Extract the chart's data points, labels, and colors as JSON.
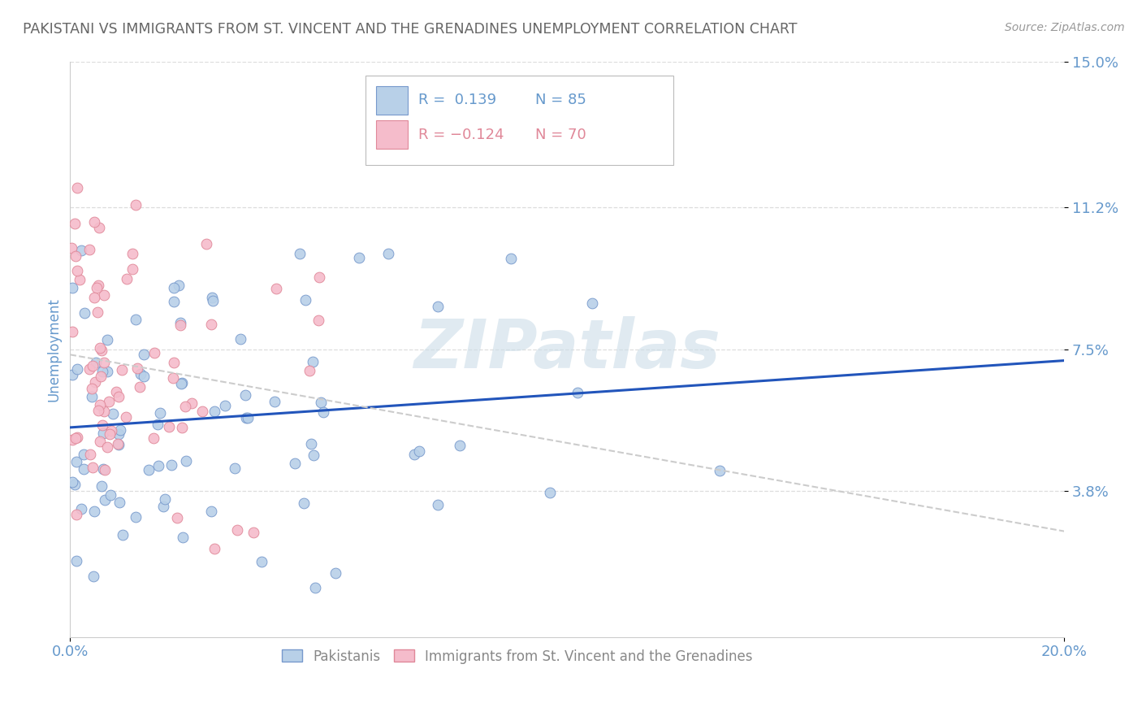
{
  "title": "PAKISTANI VS IMMIGRANTS FROM ST. VINCENT AND THE GRENADINES UNEMPLOYMENT CORRELATION CHART",
  "source": "Source: ZipAtlas.com",
  "ylabel": "Unemployment",
  "xlim": [
    0.0,
    20.0
  ],
  "ylim": [
    0.0,
    15.0
  ],
  "ytick_vals": [
    3.8,
    7.5,
    11.2,
    15.0
  ],
  "xtick_vals": [
    0.0,
    20.0
  ],
  "xtick_labels": [
    "0.0%",
    "20.0%"
  ],
  "legend_label_blue": "Pakistanis",
  "legend_label_pink": "Immigrants from St. Vincent and the Grenadines",
  "blue_face": "#b8d0e8",
  "blue_edge": "#7799cc",
  "pink_face": "#f5bccb",
  "pink_edge": "#e08899",
  "trend_blue": "#2255bb",
  "trend_pink": "#cccccc",
  "watermark": "ZIPatlas",
  "watermark_color": "#ccdde8",
  "blue_R": 0.139,
  "blue_N": 85,
  "pink_R": -0.124,
  "pink_N": 70,
  "bg": "#ffffff",
  "grid_color": "#dddddd",
  "title_color": "#666666",
  "tick_color": "#6699cc",
  "source_color": "#999999"
}
